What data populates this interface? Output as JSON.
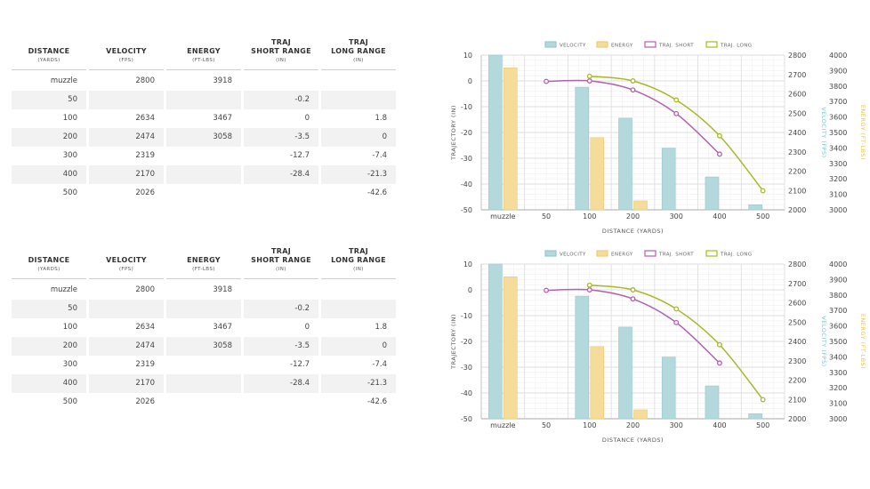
{
  "table": {
    "headers": [
      {
        "title": "DISTANCE",
        "sub": "(YARDS)"
      },
      {
        "title": "VELOCITY",
        "sub": "(FPS)"
      },
      {
        "title": "ENERGY",
        "sub": "(FT-LBS)"
      },
      {
        "title": "TRAJ\nSHORT RANGE",
        "sub": "(IN)"
      },
      {
        "title": "TRAJ\nLONG RANGE",
        "sub": "(IN)"
      }
    ],
    "rows": [
      [
        "muzzle",
        "2800",
        "3918",
        "",
        ""
      ],
      [
        "50",
        "",
        "",
        "-0.2",
        ""
      ],
      [
        "100",
        "2634",
        "3467",
        "0",
        "1.8"
      ],
      [
        "200",
        "2474",
        "3058",
        "-3.5",
        "0"
      ],
      [
        "300",
        "2319",
        "",
        "-12.7",
        "-7.4"
      ],
      [
        "400",
        "2170",
        "",
        "-28.4",
        "-21.3"
      ],
      [
        "500",
        "2026",
        "",
        "",
        "-42.6"
      ]
    ]
  },
  "chart_data": [
    {
      "type": "bar+line",
      "categories": [
        "muzzle",
        "50",
        "100",
        "200",
        "300",
        "400",
        "500"
      ],
      "xlabel": "DISTANCE (YARDS)",
      "ylabel_left": "TRAJECTORY (IN)",
      "ylabel_right1": "VELOCITY (FPS)",
      "ylabel_right2": "ENERGY (FT-LBS)",
      "ylim_left": [
        -50,
        10
      ],
      "ylim_velocity": [
        2000,
        2800
      ],
      "ylim_energy": [
        3000,
        4000
      ],
      "legend_position": "top",
      "colors": {
        "velocity": "#b3d9dc",
        "energy": "#f5dc9a",
        "traj_short": "#b35fb0",
        "traj_long": "#a9b923"
      },
      "series": [
        {
          "name": "VELOCITY",
          "axis": "velocity",
          "kind": "bar",
          "values": [
            2800,
            null,
            2634,
            2474,
            2319,
            2170,
            2026
          ]
        },
        {
          "name": "ENERGY",
          "axis": "energy",
          "kind": "bar",
          "values": [
            3918,
            null,
            3467,
            3058,
            null,
            null,
            null
          ]
        },
        {
          "name": "TRAJ. SHORT",
          "axis": "left",
          "kind": "line",
          "values": [
            null,
            -0.2,
            0,
            -3.5,
            -12.7,
            -28.4,
            null
          ]
        },
        {
          "name": "TRAJ. LONG",
          "axis": "left",
          "kind": "line",
          "values": [
            null,
            null,
            1.8,
            0,
            -7.4,
            -21.3,
            -42.6
          ]
        }
      ]
    },
    {
      "type": "bar+line",
      "categories": [
        "muzzle",
        "50",
        "100",
        "200",
        "300",
        "400",
        "500"
      ],
      "xlabel": "DISTANCE (YARDS)",
      "ylabel_left": "TRAJECTORY (IN)",
      "ylabel_right1": "VELOCITY (FPS)",
      "ylabel_right2": "ENERGY (FT-LBS)",
      "ylim_left": [
        -50,
        10
      ],
      "ylim_velocity": [
        2000,
        2800
      ],
      "ylim_energy": [
        3000,
        4000
      ],
      "legend_position": "top",
      "colors": {
        "velocity": "#b3d9dc",
        "energy": "#f5dc9a",
        "traj_short": "#b35fb0",
        "traj_long": "#a9b923"
      },
      "series": [
        {
          "name": "VELOCITY",
          "axis": "velocity",
          "kind": "bar",
          "values": [
            2800,
            null,
            2634,
            2474,
            2319,
            2170,
            2026
          ]
        },
        {
          "name": "ENERGY",
          "axis": "energy",
          "kind": "bar",
          "values": [
            3918,
            null,
            3467,
            3058,
            null,
            null,
            null
          ]
        },
        {
          "name": "TRAJ. SHORT",
          "axis": "left",
          "kind": "line",
          "values": [
            null,
            -0.2,
            0,
            -3.5,
            -12.7,
            -28.4,
            null
          ]
        },
        {
          "name": "TRAJ. LONG",
          "axis": "left",
          "kind": "line",
          "values": [
            null,
            null,
            1.8,
            0,
            -7.4,
            -21.3,
            -42.6
          ]
        }
      ]
    }
  ]
}
